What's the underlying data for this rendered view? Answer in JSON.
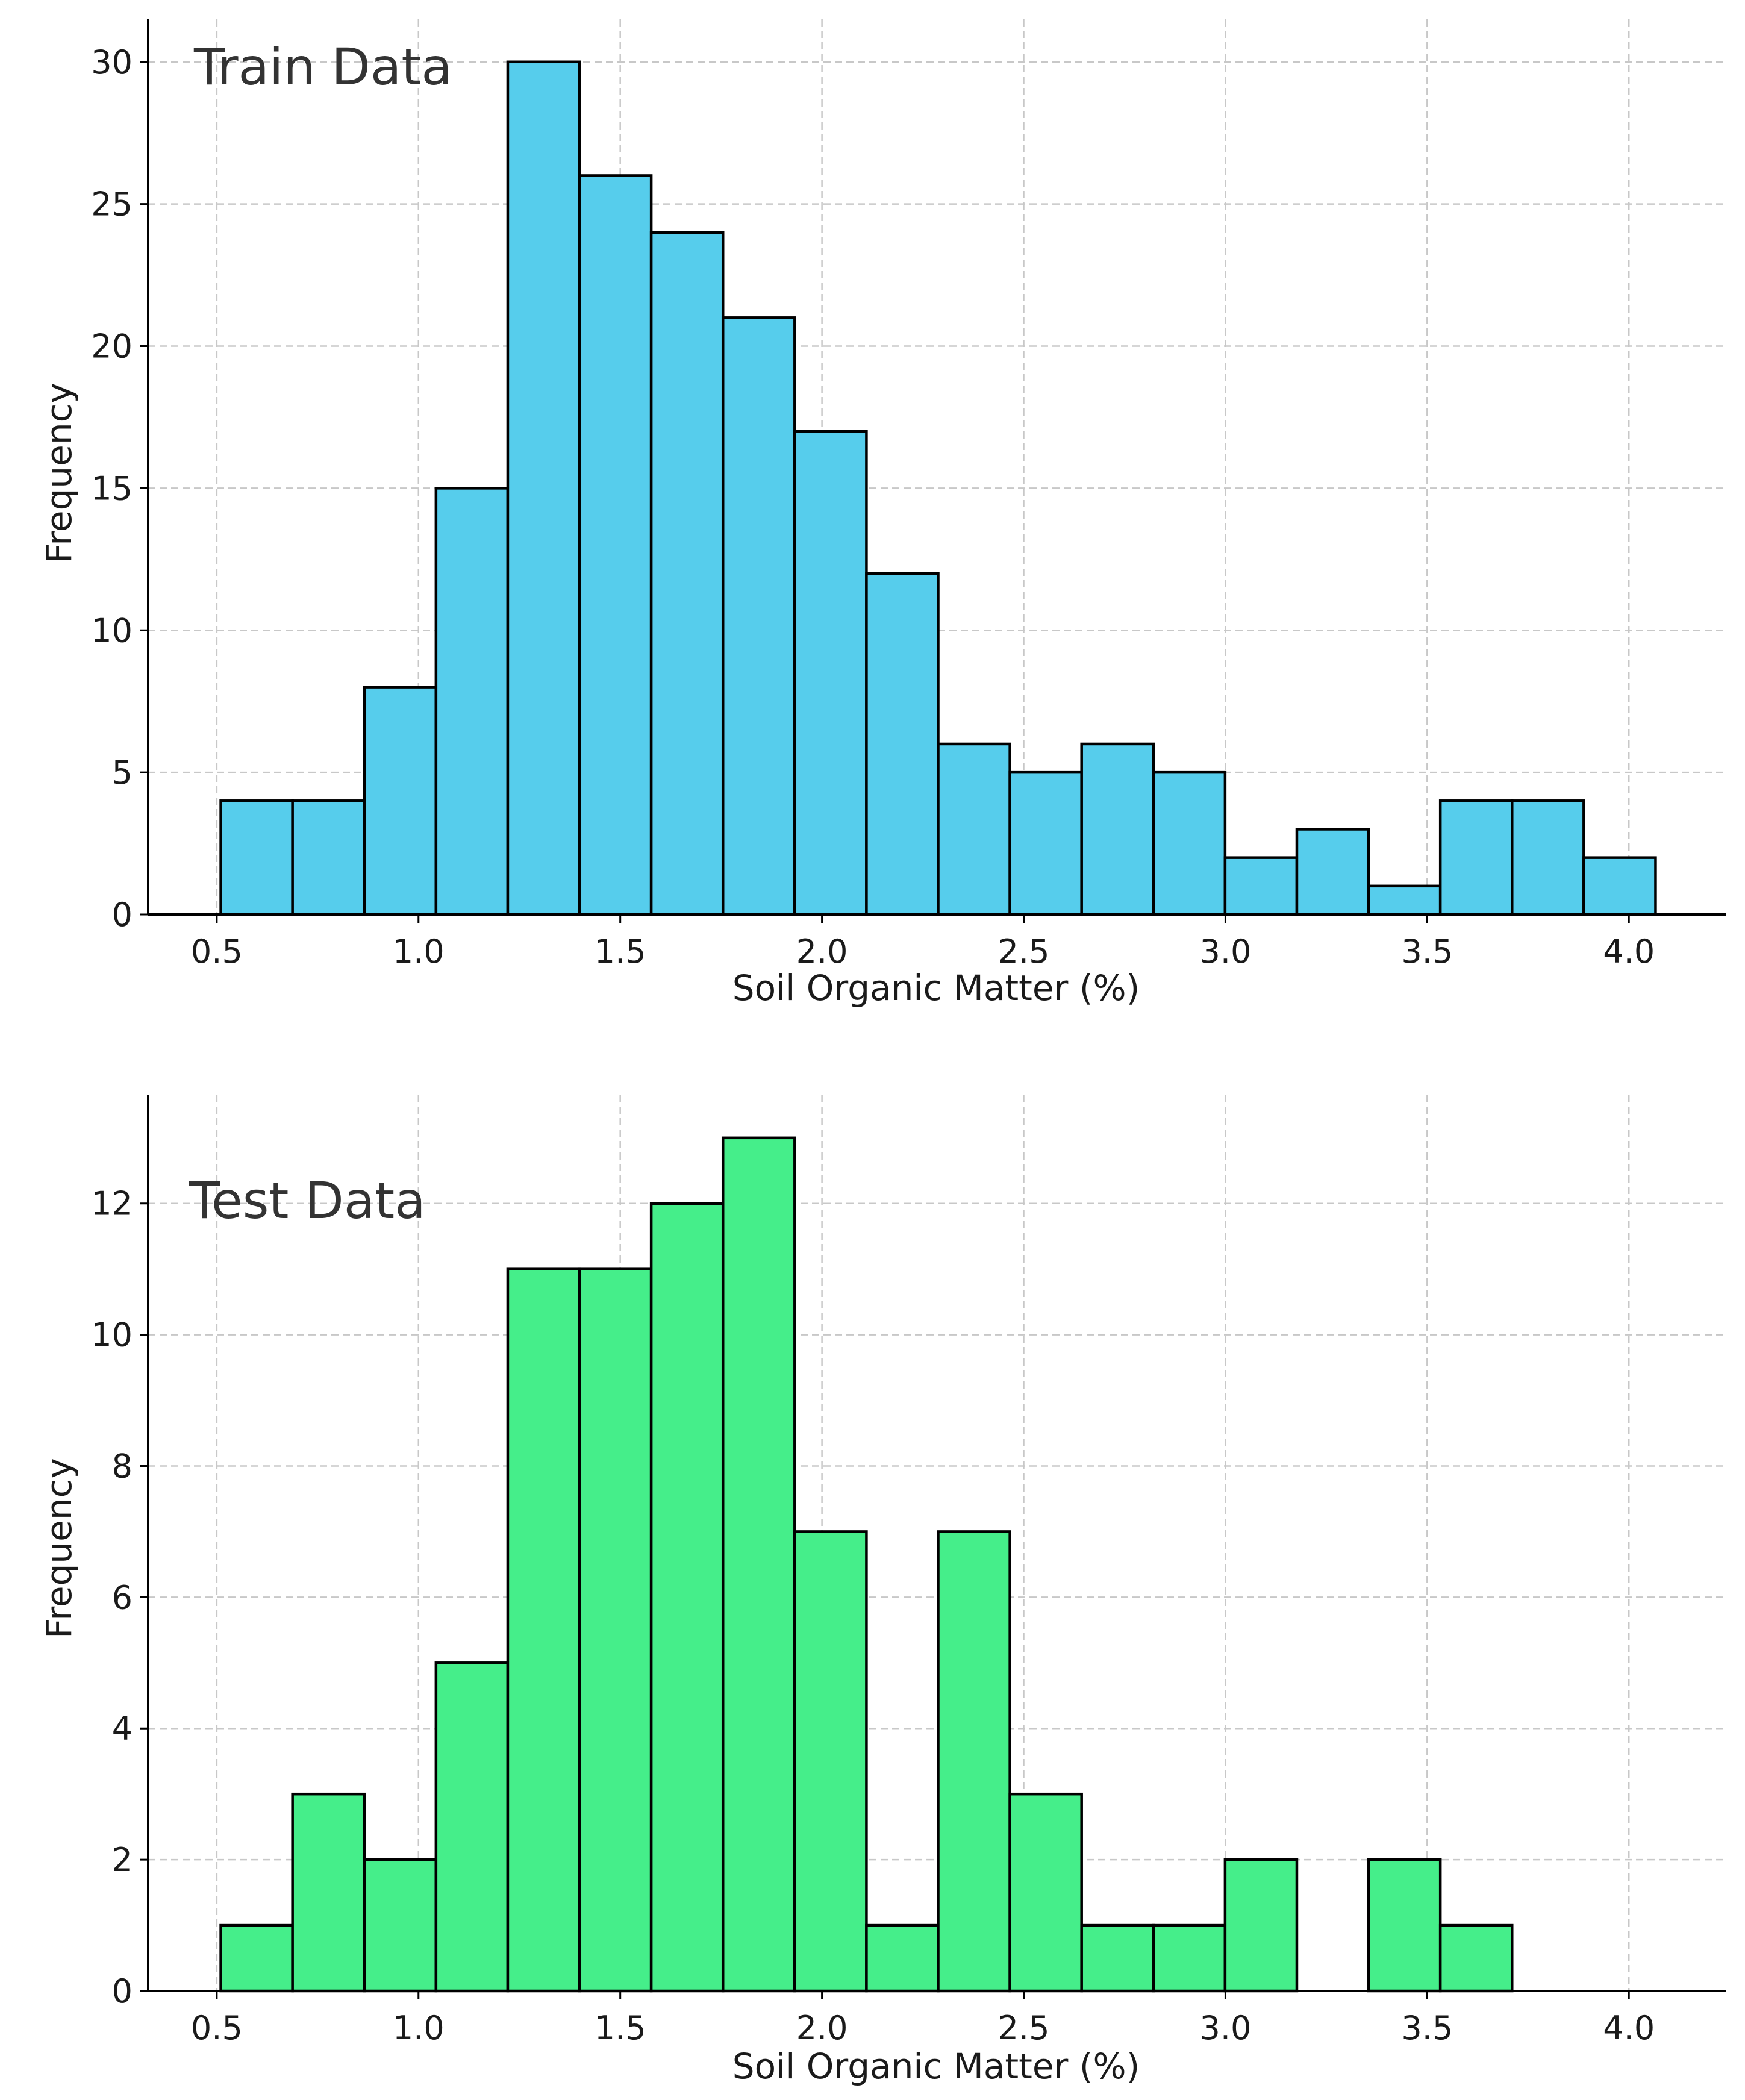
{
  "chart_data": [
    {
      "type": "bar",
      "title": "Train Data",
      "xlabel": "Soil Organic Matter (%)",
      "ylabel": "Frequency",
      "xlim": [
        0.33,
        4.24
      ],
      "ylim": [
        0,
        31.5
      ],
      "xticks": [
        0.5,
        1.0,
        1.5,
        2.0,
        2.5,
        3.0,
        3.5,
        4.0
      ],
      "xtick_labels": [
        "0.5",
        "1.0",
        "1.5",
        "2.0",
        "2.5",
        "3.0",
        "3.5",
        "4.0"
      ],
      "yticks": [
        0,
        5,
        10,
        15,
        20,
        25,
        30
      ],
      "ytick_labels": [
        "0",
        "5",
        "10",
        "15",
        "20",
        "25",
        "30"
      ],
      "bin_start": 0.51,
      "bin_width": 0.1778,
      "values": [
        4,
        4,
        8,
        15,
        30,
        26,
        24,
        21,
        17,
        12,
        6,
        5,
        6,
        5,
        2,
        3,
        1,
        4,
        4,
        2
      ],
      "color": "#56CDEC",
      "grid": true
    },
    {
      "type": "bar",
      "title": "Test Data",
      "xlabel": "Soil Organic Matter (%)",
      "ylabel": "Frequency",
      "xlim": [
        0.33,
        4.24
      ],
      "ylim": [
        0,
        13.65
      ],
      "xticks": [
        0.5,
        1.0,
        1.5,
        2.0,
        2.5,
        3.0,
        3.5,
        4.0
      ],
      "xtick_labels": [
        "0.5",
        "1.0",
        "1.5",
        "2.0",
        "2.5",
        "3.0",
        "3.5",
        "4.0"
      ],
      "yticks": [
        0,
        2,
        4,
        6,
        8,
        10,
        12
      ],
      "ytick_labels": [
        "0",
        "2",
        "4",
        "6",
        "8",
        "10",
        "12"
      ],
      "bin_start": 0.51,
      "bin_width": 0.1778,
      "values": [
        1,
        3,
        2,
        5,
        11,
        11,
        12,
        13,
        7,
        1,
        7,
        3,
        1,
        1,
        2,
        0,
        2,
        1,
        0,
        0
      ],
      "color": "#45EE8A",
      "grid": true
    }
  ]
}
